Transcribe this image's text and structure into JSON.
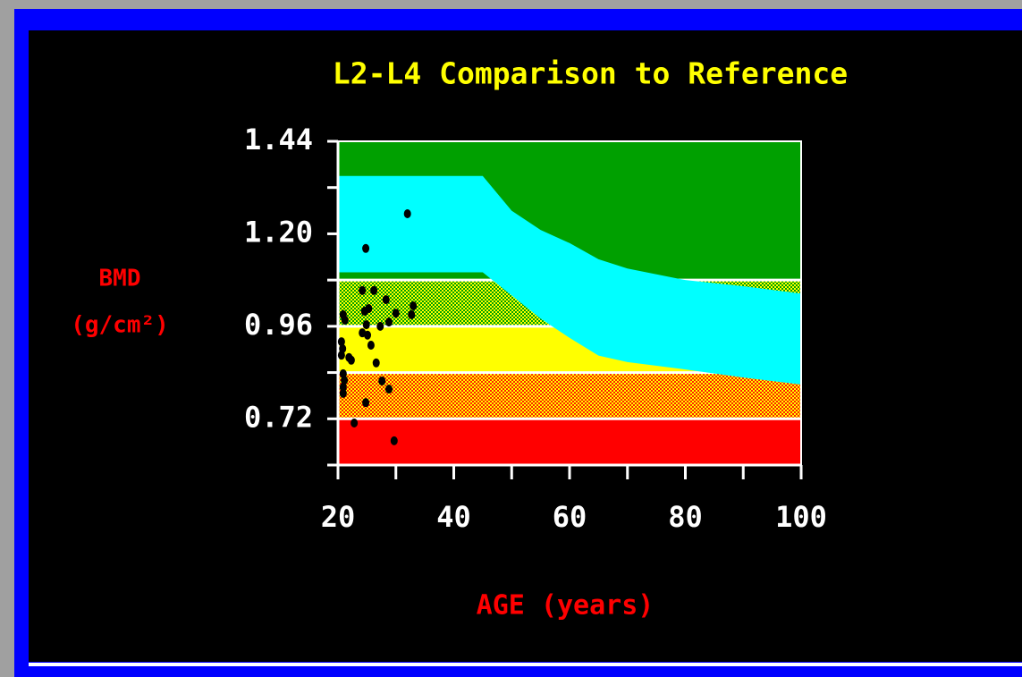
{
  "chart_data": {
    "type": "scatter",
    "title": "L2-L4 Comparison to Reference",
    "xlabel": "AGE (years)",
    "ylabel": [
      "BMD",
      "(g/cm²)"
    ],
    "xlim": [
      20,
      100
    ],
    "xticks": [
      20,
      40,
      60,
      80,
      100
    ],
    "xticks_minor": [
      30,
      50,
      70,
      90
    ],
    "ylim": [
      0.6,
      1.44
    ],
    "yticks": [
      {
        "value": 0.72,
        "label": "0.72"
      },
      {
        "value": 0.96,
        "label": "0.96"
      },
      {
        "value": 1.2,
        "label": "1.20"
      },
      {
        "value": 1.44,
        "label": "1.44"
      }
    ],
    "yticks_minor": [
      0.6,
      0.84,
      1.08,
      1.32
    ],
    "zones": [
      {
        "range": [
          0.6,
          0.72
        ],
        "color": "#ff0000"
      },
      {
        "range": [
          0.72,
          0.84
        ],
        "color": "#ff2000",
        "color2": "#ffff00"
      },
      {
        "range": [
          0.84,
          0.96
        ],
        "color": "#ffff00"
      },
      {
        "range": [
          0.96,
          1.08
        ],
        "color": "#00a000",
        "color2": "#ffff00"
      },
      {
        "range": [
          1.08,
          1.44
        ],
        "color": "#00a000"
      }
    ],
    "reference_band": {
      "color": "#00ffff",
      "x": [
        20,
        45,
        50,
        55,
        60,
        65,
        70,
        80,
        90,
        100
      ],
      "upper": [
        1.35,
        1.35,
        1.26,
        1.21,
        1.176,
        1.134,
        1.11,
        1.08,
        1.064,
        1.045
      ],
      "lower": [
        1.1,
        1.1,
        1.04,
        0.98,
        0.93,
        0.884,
        0.867,
        0.848,
        0.827,
        0.809
      ]
    },
    "color": "#000000",
    "x": [
      32.0,
      24.8,
      24.2,
      26.2,
      20.9,
      21.2,
      24.6,
      25.3,
      28.3,
      33.0,
      32.7,
      30.0,
      28.8,
      27.3,
      24.9,
      24.2,
      25.1,
      25.7,
      20.6,
      20.8,
      20.6,
      21.9,
      22.3,
      26.6,
      20.9,
      21.1,
      20.9,
      20.9,
      27.6,
      28.8,
      24.8,
      22.8,
      29.7
    ],
    "y": [
      1.252,
      1.162,
      1.053,
      1.053,
      0.99,
      0.976,
      0.999,
      1.006,
      1.029,
      1.013,
      0.99,
      0.994,
      0.971,
      0.96,
      0.964,
      0.943,
      0.937,
      0.911,
      0.92,
      0.902,
      0.885,
      0.879,
      0.872,
      0.865,
      0.837,
      0.82,
      0.802,
      0.786,
      0.818,
      0.797,
      0.762,
      0.709,
      0.663
    ]
  }
}
